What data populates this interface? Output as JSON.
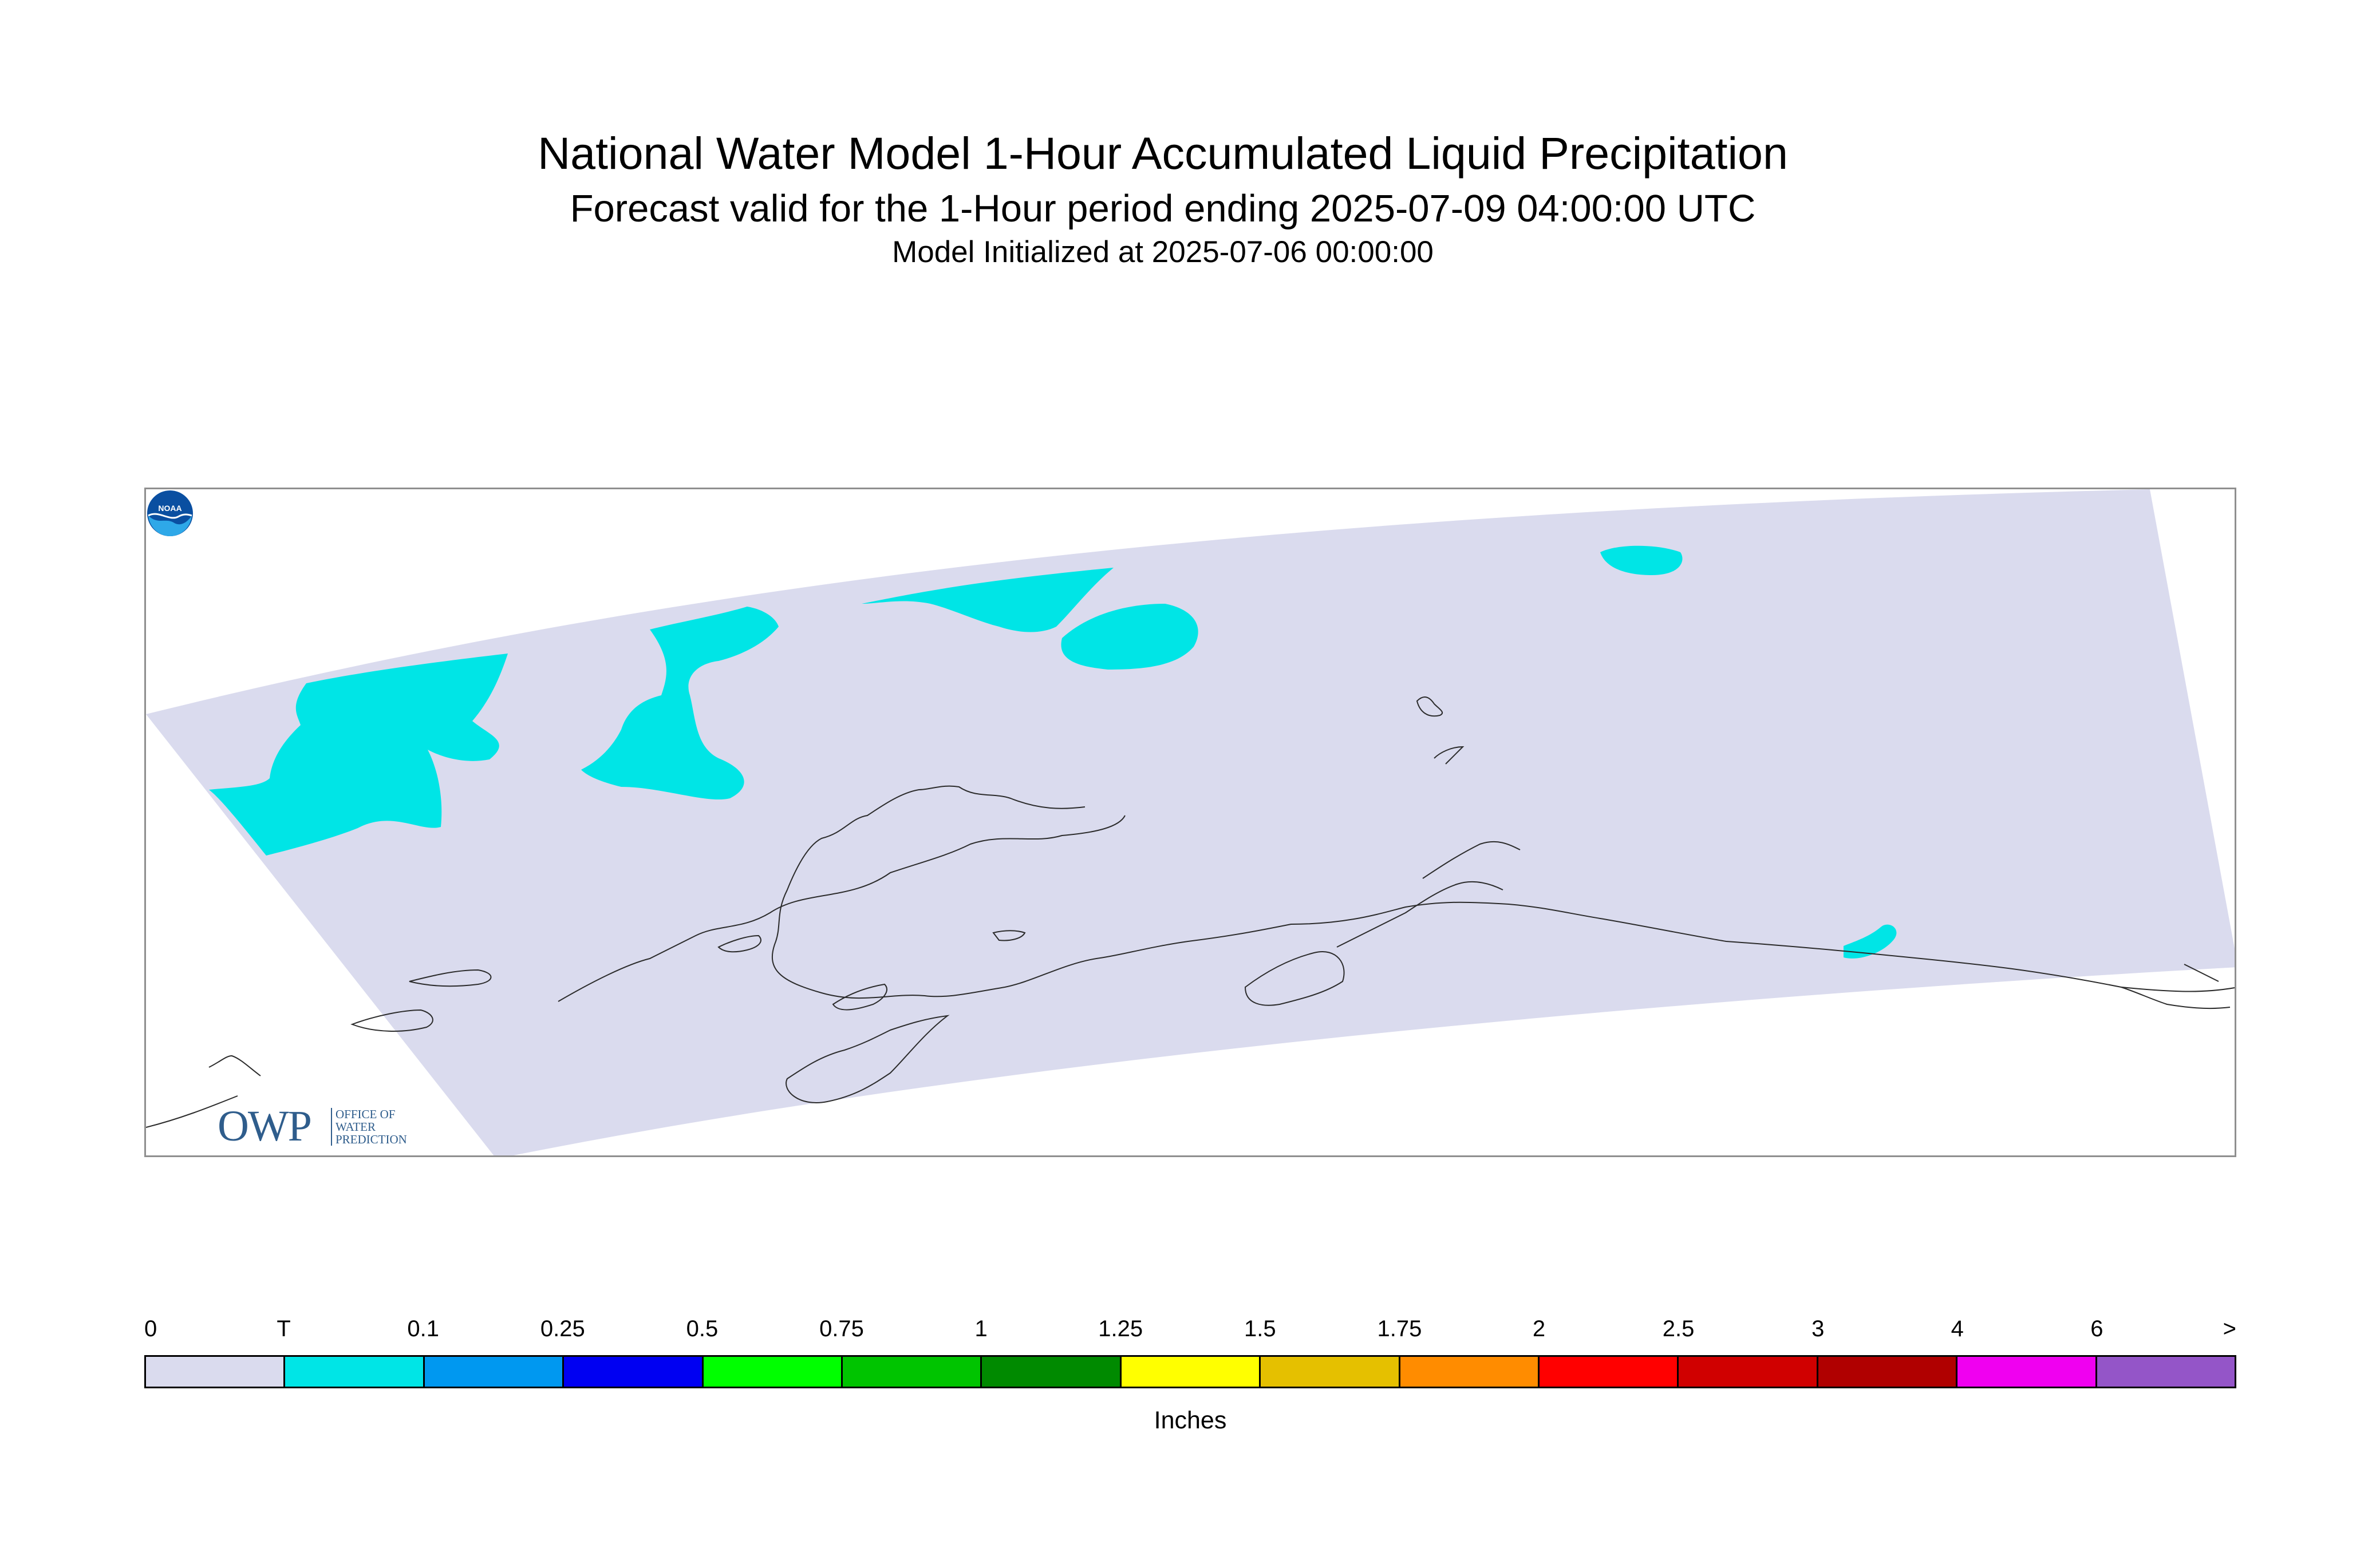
{
  "header": {
    "title": "National Water Model 1-Hour Accumulated Liquid Precipitation",
    "subtitle": "Forecast valid for the 1-Hour period ending 2025-07-09 04:00:00 UTC",
    "init": "Model Initialized at 2025-07-06 00:00:00"
  },
  "map": {
    "domain_color": "#dadbee",
    "coastline_color": "#2b2b2b",
    "precip_color": "#00e5e6",
    "logos": {
      "owp": {
        "text": "OWP",
        "small_text": "OFFICE OF\nWATER\nPREDICTION",
        "icon": "owp-logo"
      },
      "noaa": {
        "text": "NOAA",
        "icon": "noaa-logo"
      }
    }
  },
  "legend": {
    "labels": [
      "0",
      "T",
      "0.1",
      "0.25",
      "0.5",
      "0.75",
      "1",
      "1.25",
      "1.5",
      "1.75",
      "2",
      "2.5",
      "3",
      "4",
      "6",
      ">"
    ],
    "colors": [
      "#dadbee",
      "#00e5e6",
      "#0098f0",
      "#0000f2",
      "#00ff00",
      "#00c400",
      "#008a00",
      "#ffff00",
      "#e5c000",
      "#ff8c00",
      "#ff0000",
      "#d00000",
      "#b00000",
      "#f000f0",
      "#9455c8"
    ],
    "units": "Inches"
  }
}
